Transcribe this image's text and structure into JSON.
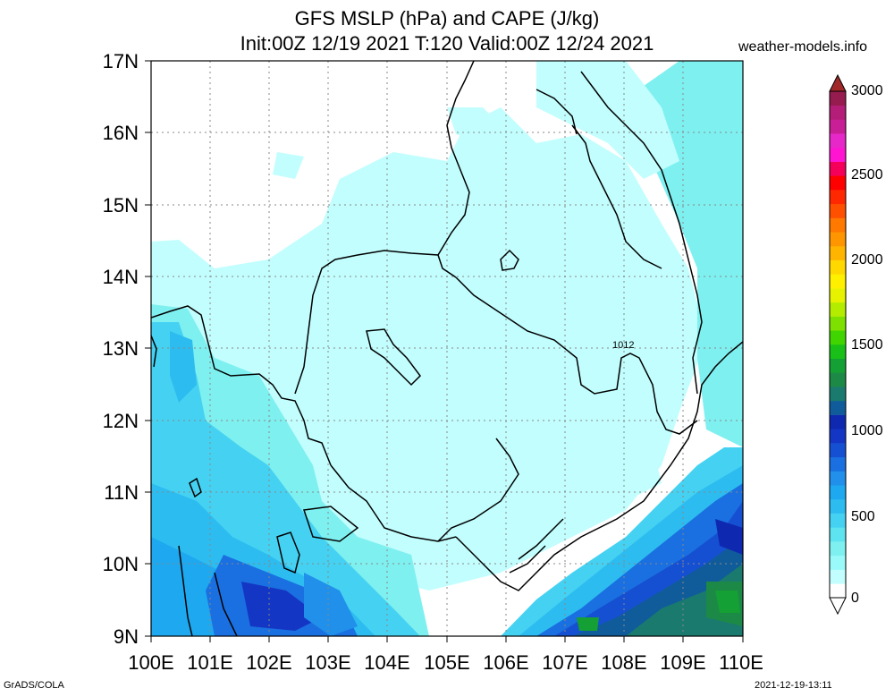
{
  "header": {
    "title_line1": "GFS MSLP (hPa) and CAPE (J/kg)",
    "title_line2": "Init:00Z 12/19 2021 T:120 Valid:00Z 12/24 2021",
    "site": "weather-models.info"
  },
  "footer": {
    "left": "GrADS/COLA",
    "right": "2021-12-19-13:11"
  },
  "map": {
    "lon_labels": [
      "100E",
      "101E",
      "102E",
      "103E",
      "104E",
      "105E",
      "106E",
      "107E",
      "108E",
      "109E",
      "110E"
    ],
    "lat_labels": [
      "9N",
      "10N",
      "11N",
      "12N",
      "13N",
      "14N",
      "15N",
      "16N",
      "17N"
    ],
    "isobar_labels": [
      "1012"
    ]
  },
  "colorbar": {
    "labels": [
      "0",
      "500",
      "1000",
      "1500",
      "2000",
      "2500",
      "3000"
    ],
    "colors": [
      "#ffffff",
      "#c2fefe",
      "#9afafa",
      "#7ff0f0",
      "#5ee4f0",
      "#45d2f2",
      "#2dbcf0",
      "#1ea8f0",
      "#2090ea",
      "#1a70e0",
      "#1650d2",
      "#1436c4",
      "#0f28b0",
      "#105c9a",
      "#1a7a6e",
      "#1c8a46",
      "#14a034",
      "#18c018",
      "#40d400",
      "#7ee000",
      "#b4ec00",
      "#e6f200",
      "#fff000",
      "#ffd800",
      "#ffb400",
      "#ff9600",
      "#ff7800",
      "#ff5000",
      "#ff2800",
      "#ff0000",
      "#f4005a",
      "#ff14d2",
      "#e628c8",
      "#c81e96",
      "#b41e78",
      "#961c50"
    ],
    "top_color": "#a02828",
    "bottom_color": "#ffffff"
  }
}
